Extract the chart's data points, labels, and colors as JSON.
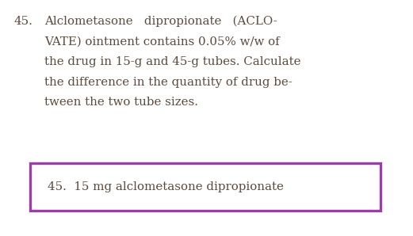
{
  "background_color": "#ffffff",
  "question_number": "45.",
  "question_text_lines": [
    "Alclometasone   dipropionate   (ACLO-",
    "VATE) ointment contains 0.05% w/w of",
    "the drug in 15-g and 45-g tubes. Calculate",
    "the difference in the quantity of drug be-",
    "tween the two tube sizes."
  ],
  "answer_label": "45.  15 mg alclometasone dipropionate",
  "question_text_color": "#5c4a3c",
  "answer_text_color": "#5c4a3c",
  "box_edge_color": "#9b3fa8",
  "question_fontsize": 10.8,
  "answer_fontsize": 10.8,
  "number_color": "#5c4a3c",
  "fig_width": 5.21,
  "fig_height": 2.98,
  "dpi": 100
}
